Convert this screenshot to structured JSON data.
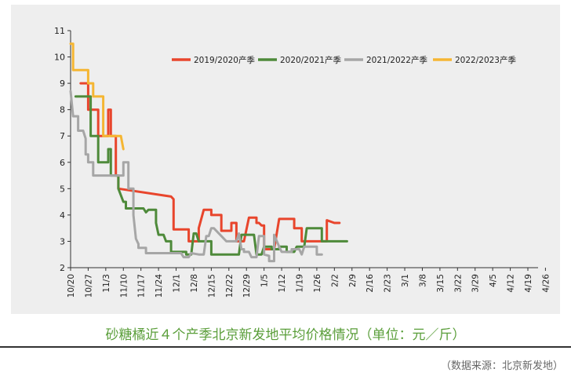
{
  "caption": "砂糖橘近４个产季北京新发地平均价格情况（单位：元／斤）",
  "source": "（数据来源：北京新发地）",
  "chart_data": {
    "type": "line",
    "title": "",
    "xlabel": "",
    "ylabel": "",
    "ylim": [
      2,
      11
    ],
    "yticks": [
      "2",
      "3",
      "4",
      "5",
      "6",
      "7",
      "8",
      "9",
      "10",
      "11"
    ],
    "xticks": [
      "10/20",
      "10/27",
      "11/3",
      "11/10",
      "11/17",
      "11/24",
      "12/1",
      "12/8",
      "12/15",
      "12/22",
      "12/29",
      "1/5",
      "1/12",
      "1/19",
      "1/26",
      "2/2",
      "2/9",
      "2/16",
      "2/23",
      "3/1",
      "3/8",
      "3/15",
      "3/22",
      "3/29",
      "4/5",
      "4/12",
      "4/19",
      "4/26"
    ],
    "grid": false,
    "legend": "top-right",
    "x_unit": "day index from 10/20 (tick every 7)",
    "series": [
      {
        "name": "2019/2020产季",
        "color": "#e8452c",
        "points": [
          [
            4,
            9
          ],
          [
            7,
            9
          ],
          [
            7,
            8
          ],
          [
            11,
            8
          ],
          [
            11,
            7
          ],
          [
            15,
            7
          ],
          [
            15,
            8
          ],
          [
            16,
            8
          ],
          [
            16,
            7
          ],
          [
            18,
            7
          ],
          [
            18,
            5.5
          ],
          [
            19,
            5.5
          ],
          [
            19,
            5
          ],
          [
            40,
            4.7
          ],
          [
            41,
            4.6
          ],
          [
            41,
            3.45
          ],
          [
            47,
            3.45
          ],
          [
            47,
            3
          ],
          [
            51,
            3
          ],
          [
            51,
            3.5
          ],
          [
            53,
            4.2
          ],
          [
            56,
            4.2
          ],
          [
            56,
            4
          ],
          [
            60,
            4
          ],
          [
            60,
            3.4
          ],
          [
            62,
            3.4
          ],
          [
            62,
            3.4
          ],
          [
            64,
            3.4
          ],
          [
            64,
            3.7
          ],
          [
            66,
            3.7
          ],
          [
            66,
            3
          ],
          [
            69,
            3
          ],
          [
            69,
            3
          ],
          [
            71,
            3.9
          ],
          [
            74,
            3.9
          ],
          [
            74,
            3.7
          ],
          [
            75,
            3.7
          ],
          [
            76,
            3.6
          ],
          [
            77,
            3.6
          ],
          [
            77,
            2.7
          ],
          [
            81,
            2.7
          ],
          [
            81,
            2.7
          ],
          [
            83,
            3.85
          ],
          [
            89,
            3.85
          ],
          [
            89,
            3.5
          ],
          [
            92,
            3.5
          ],
          [
            92,
            3
          ],
          [
            102,
            3
          ],
          [
            102,
            3.8
          ],
          [
            105,
            3.7
          ],
          [
            107,
            3.7
          ]
        ]
      },
      {
        "name": "2020/2021产季",
        "color": "#4e8a3a",
        "points": [
          [
            2,
            8.5
          ],
          [
            8,
            8.5
          ],
          [
            8,
            7
          ],
          [
            11,
            7
          ],
          [
            11,
            6
          ],
          [
            15,
            6
          ],
          [
            15,
            6.5
          ],
          [
            16,
            6.5
          ],
          [
            16,
            5.5
          ],
          [
            19,
            5.5
          ],
          [
            19,
            5
          ],
          [
            21,
            4.5
          ],
          [
            22,
            4.5
          ],
          [
            22,
            4.25
          ],
          [
            29,
            4.25
          ],
          [
            30,
            4.1
          ],
          [
            31,
            4.2
          ],
          [
            34,
            4.2
          ],
          [
            34,
            3.7
          ],
          [
            35,
            3.25
          ],
          [
            37,
            3.25
          ],
          [
            38,
            3
          ],
          [
            40,
            3
          ],
          [
            40,
            2.6
          ],
          [
            46,
            2.6
          ],
          [
            46,
            2.5
          ],
          [
            48,
            2.5
          ],
          [
            49,
            3.3
          ],
          [
            50,
            3.3
          ],
          [
            51,
            3
          ],
          [
            56,
            3
          ],
          [
            56,
            2.5
          ],
          [
            61,
            2.5
          ],
          [
            61,
            2.5
          ],
          [
            63,
            2.5
          ],
          [
            64,
            2.5
          ],
          [
            67,
            2.5
          ],
          [
            68,
            3.25
          ],
          [
            73,
            3.25
          ],
          [
            74,
            2.5
          ],
          [
            75,
            2.5
          ],
          [
            76,
            2.5
          ],
          [
            77,
            2.8
          ],
          [
            80,
            2.8
          ],
          [
            80,
            2.7
          ],
          [
            83,
            2.7
          ],
          [
            83,
            2.8
          ],
          [
            86,
            2.8
          ],
          [
            86,
            2.6
          ],
          [
            89,
            2.6
          ],
          [
            90,
            2.8
          ],
          [
            93,
            2.8
          ],
          [
            94,
            3.5
          ],
          [
            100,
            3.5
          ],
          [
            100,
            3
          ],
          [
            103,
            3
          ],
          [
            104,
            3
          ],
          [
            106,
            3
          ],
          [
            110,
            3
          ]
        ]
      },
      {
        "name": "2021/2022产季",
        "color": "#a6a6a6",
        "points": [
          [
            0,
            8.7
          ],
          [
            1,
            7.75
          ],
          [
            3,
            7.75
          ],
          [
            3,
            7.2
          ],
          [
            5,
            7.2
          ],
          [
            6,
            6.9
          ],
          [
            6,
            6.3
          ],
          [
            7,
            6.3
          ],
          [
            7,
            6
          ],
          [
            9,
            6
          ],
          [
            9,
            5.5
          ],
          [
            21,
            5.5
          ],
          [
            21,
            6
          ],
          [
            23,
            6
          ],
          [
            23,
            5
          ],
          [
            25,
            5
          ],
          [
            25,
            4
          ],
          [
            26,
            3.1
          ],
          [
            27,
            2.9
          ],
          [
            27,
            2.75
          ],
          [
            30,
            2.75
          ],
          [
            30,
            2.55
          ],
          [
            41,
            2.55
          ],
          [
            41,
            2.55
          ],
          [
            44,
            2.55
          ],
          [
            45,
            2.4
          ],
          [
            47,
            2.4
          ],
          [
            48,
            2.55
          ],
          [
            51,
            2.5
          ],
          [
            53,
            2.5
          ],
          [
            54,
            3.2
          ],
          [
            55,
            3.2
          ],
          [
            56,
            3.5
          ],
          [
            57,
            3.5
          ],
          [
            60,
            3.2
          ],
          [
            62,
            3
          ],
          [
            66,
            3
          ],
          [
            67,
            3.3
          ],
          [
            68,
            2.7
          ],
          [
            69,
            2.7
          ],
          [
            69,
            2.6
          ],
          [
            71,
            2.6
          ],
          [
            72,
            2.4
          ],
          [
            74,
            2.4
          ],
          [
            75,
            3.2
          ],
          [
            77,
            3.2
          ],
          [
            77,
            2.5
          ],
          [
            79,
            2.45
          ],
          [
            79,
            2.25
          ],
          [
            81,
            2.25
          ],
          [
            81,
            3.25
          ],
          [
            83,
            2.8
          ],
          [
            84,
            2.6
          ],
          [
            88,
            2.6
          ],
          [
            88,
            2.7
          ],
          [
            91,
            2.7
          ],
          [
            92,
            2.5
          ],
          [
            93,
            2.8
          ],
          [
            98,
            2.8
          ],
          [
            98,
            2.5
          ],
          [
            100,
            2.5
          ]
        ]
      },
      {
        "name": "2022/2023产季",
        "color": "#f5b633",
        "points": [
          [
            0,
            10.5
          ],
          [
            1,
            10.5
          ],
          [
            1,
            9.5
          ],
          [
            7,
            9.5
          ],
          [
            7,
            9
          ],
          [
            9,
            9
          ],
          [
            9,
            8.5
          ],
          [
            13,
            8.5
          ],
          [
            13,
            7
          ],
          [
            17,
            7
          ],
          [
            19,
            7
          ],
          [
            19,
            7
          ],
          [
            20,
            7
          ],
          [
            21,
            6.5
          ]
        ]
      }
    ]
  }
}
